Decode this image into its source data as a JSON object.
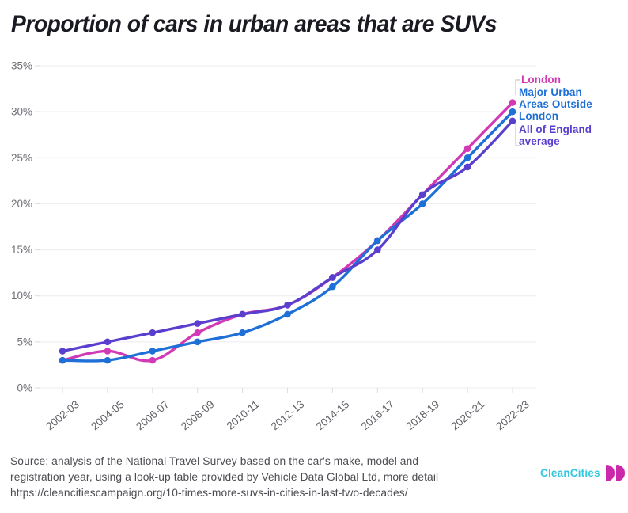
{
  "chart_data": {
    "type": "line",
    "title": "Proportion of cars in urban areas that are SUVs",
    "categories": [
      "2002-03",
      "2004-05",
      "2006-07",
      "2008-09",
      "2010-11",
      "2012-13",
      "2014-15",
      "2016-17",
      "2018-19",
      "2020-21",
      "2022-23"
    ],
    "series": [
      {
        "name": "London",
        "color": "#d23ab5",
        "values": [
          3,
          4,
          3,
          6,
          8,
          9,
          12,
          16,
          21,
          26,
          31
        ]
      },
      {
        "name": "Major Urban Areas Outside London",
        "color": "#1e6fd6",
        "values": [
          3,
          3,
          4,
          5,
          6,
          8,
          11,
          16,
          20,
          25,
          30
        ]
      },
      {
        "name": "All of England average",
        "color": "#5a3fce",
        "values": [
          4,
          5,
          6,
          7,
          8,
          9,
          12,
          15,
          21,
          24,
          29
        ]
      }
    ],
    "y_ticks": [
      "0%",
      "5%",
      "10%",
      "15%",
      "20%",
      "25%",
      "30%",
      "35%"
    ],
    "ylim": [
      0,
      35
    ],
    "grid": "horizontal",
    "legend_position": "right-of-line-ends"
  },
  "footer": {
    "source_lines": [
      "Source: analysis of the National Travel Survey based on the car's make, model and",
      "registration year, using a look-up table provided by Vehicle Data Global Ltd, more detail",
      "https://cleancitiescampaign.org/10-times-more-suvs-in-cities-in-last-two-decades/"
    ],
    "logo_text": "CleanCities"
  },
  "colors": {
    "grid": "#ececf0",
    "axis": "#dcdce1",
    "tick_label": "#6e6e76",
    "connector": "#c8c8ce",
    "logo_cyan": "#38c6de",
    "logo_magenta": "#cb29ac"
  }
}
